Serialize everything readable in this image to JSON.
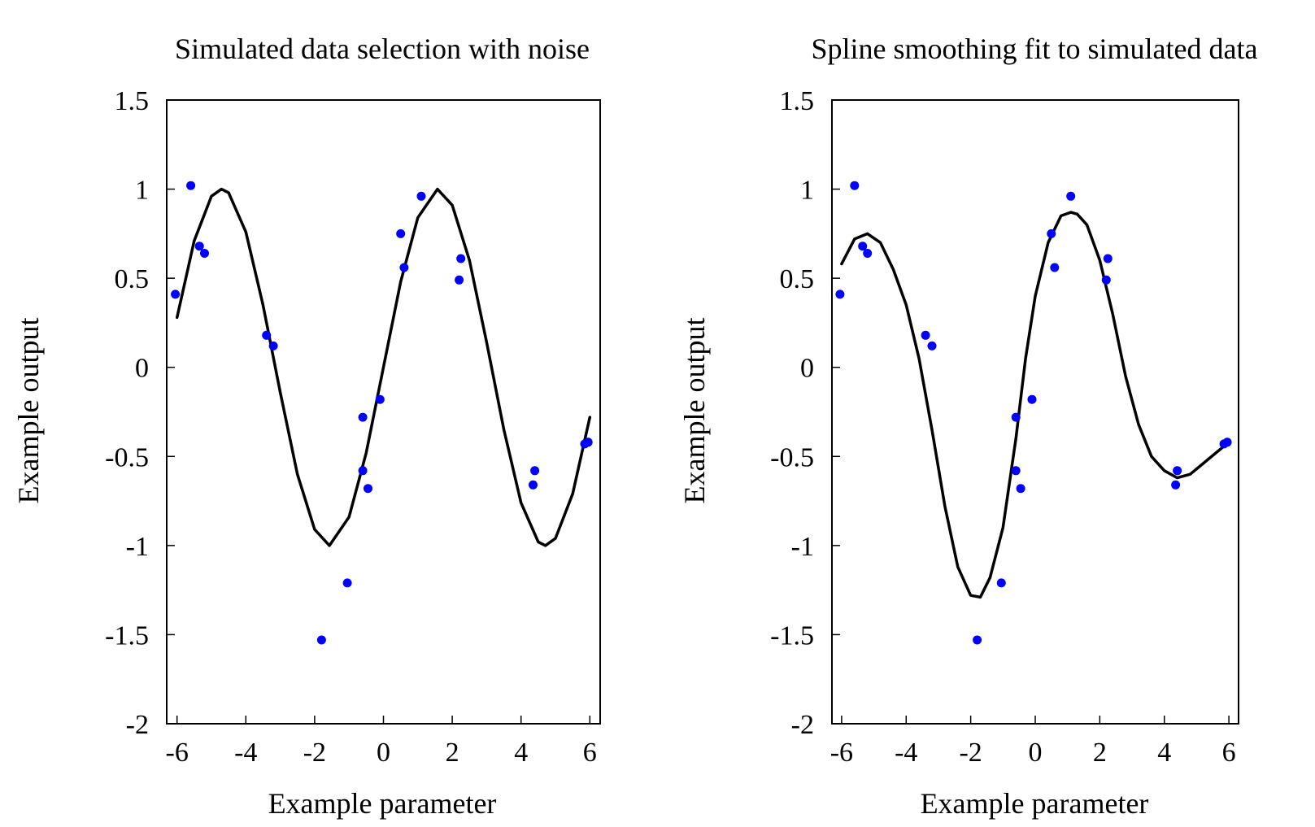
{
  "chart_data": [
    {
      "type": "scatter",
      "title": "Simulated data selection with noise",
      "xlabel": "Example parameter",
      "ylabel": "Example output",
      "xlim": [
        -6.3,
        6.3
      ],
      "ylim": [
        -2,
        1.5
      ],
      "xticks": [
        -6,
        -4,
        -2,
        0,
        2,
        4,
        6
      ],
      "xtick_labels": [
        "-6",
        "-4",
        "-2",
        "0",
        "2",
        "4",
        "6"
      ],
      "yticks": [
        -2,
        -1.5,
        -1,
        -0.5,
        0,
        0.5,
        1,
        1.5
      ],
      "ytick_labels": [
        "-2",
        "-1.5",
        "-1",
        "-0.5",
        "0",
        "0.5",
        "1",
        "1.5"
      ],
      "grid": false,
      "legend": "none",
      "series": [
        {
          "type": "scatter",
          "color": "#0000ff",
          "x": [
            -6.05,
            -5.6,
            -5.35,
            -5.2,
            -3.4,
            -3.2,
            -1.8,
            -1.05,
            -0.6,
            -0.6,
            -0.45,
            -0.1,
            0.5,
            0.6,
            1.1,
            2.2,
            2.25,
            4.35,
            4.4,
            5.85,
            5.95
          ],
          "y": [
            0.41,
            1.02,
            0.68,
            0.64,
            0.18,
            0.12,
            -1.53,
            -1.21,
            -0.28,
            -0.58,
            -0.68,
            -0.18,
            0.75,
            0.56,
            0.96,
            0.49,
            0.61,
            -0.66,
            -0.58,
            -0.43,
            -0.42
          ]
        },
        {
          "type": "line",
          "color": "#000000",
          "x": [
            -6,
            -5.5,
            -5,
            -4.71,
            -4.5,
            -4,
            -3.5,
            -3,
            -2.5,
            -2,
            -1.57,
            -1,
            -0.5,
            0,
            0.5,
            1,
            1.57,
            2,
            2.5,
            3,
            3.5,
            4,
            4.5,
            4.71,
            5,
            5.5,
            6
          ],
          "y": [
            0.28,
            0.71,
            0.96,
            1,
            0.98,
            0.76,
            0.35,
            -0.14,
            -0.6,
            -0.91,
            -1,
            -0.84,
            -0.48,
            0,
            0.48,
            0.84,
            1,
            0.91,
            0.6,
            0.14,
            -0.35,
            -0.76,
            -0.98,
            -1,
            -0.96,
            -0.71,
            -0.28
          ]
        }
      ]
    },
    {
      "type": "scatter",
      "title": "Spline smoothing fit to simulated data",
      "xlabel": "Example parameter",
      "ylabel": "Example output",
      "xlim": [
        -6.3,
        6.3
      ],
      "ylim": [
        -2,
        1.5
      ],
      "xticks": [
        -6,
        -4,
        -2,
        0,
        2,
        4,
        6
      ],
      "xtick_labels": [
        "-6",
        "-4",
        "-2",
        "0",
        "2",
        "4",
        "6"
      ],
      "yticks": [
        -2,
        -1.5,
        -1,
        -0.5,
        0,
        0.5,
        1,
        1.5
      ],
      "ytick_labels": [
        "-2",
        "-1.5",
        "-1",
        "-0.5",
        "0",
        "0.5",
        "1",
        "1.5"
      ],
      "grid": false,
      "legend": "none",
      "series": [
        {
          "type": "scatter",
          "color": "#0000ff",
          "x": [
            -6.05,
            -5.6,
            -5.35,
            -5.2,
            -3.4,
            -3.2,
            -1.8,
            -1.05,
            -0.6,
            -0.6,
            -0.45,
            -0.1,
            0.5,
            0.6,
            1.1,
            2.2,
            2.25,
            4.35,
            4.4,
            5.85,
            5.95
          ],
          "y": [
            0.41,
            1.02,
            0.68,
            0.64,
            0.18,
            0.12,
            -1.53,
            -1.21,
            -0.28,
            -0.58,
            -0.68,
            -0.18,
            0.75,
            0.56,
            0.96,
            0.49,
            0.61,
            -0.66,
            -0.58,
            -0.43,
            -0.42
          ]
        },
        {
          "type": "line",
          "color": "#000000",
          "x": [
            -6,
            -5.6,
            -5.2,
            -4.8,
            -4.4,
            -4,
            -3.6,
            -3.2,
            -2.8,
            -2.4,
            -2,
            -1.7,
            -1.4,
            -1,
            -0.6,
            -0.3,
            0,
            0.4,
            0.8,
            1.1,
            1.3,
            1.6,
            2,
            2.4,
            2.8,
            3.2,
            3.6,
            4,
            4.4,
            4.8,
            5.2,
            5.6,
            6
          ],
          "y": [
            0.58,
            0.72,
            0.75,
            0.7,
            0.55,
            0.35,
            0.05,
            -0.35,
            -0.78,
            -1.12,
            -1.28,
            -1.29,
            -1.18,
            -0.9,
            -0.4,
            0.05,
            0.4,
            0.7,
            0.85,
            0.87,
            0.86,
            0.8,
            0.6,
            0.3,
            -0.05,
            -0.32,
            -0.5,
            -0.58,
            -0.62,
            -0.6,
            -0.54,
            -0.48,
            -0.42
          ]
        }
      ]
    }
  ]
}
